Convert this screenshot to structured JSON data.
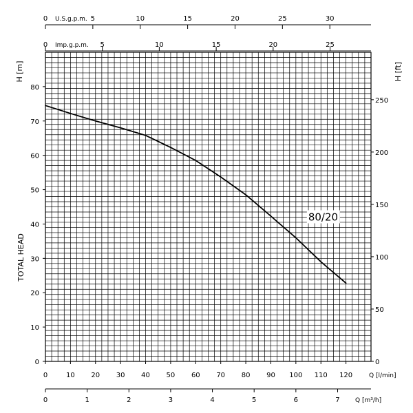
{
  "chart_data": {
    "type": "line",
    "title": "",
    "series": [
      {
        "name": "80/20",
        "x": [
          0,
          10,
          20,
          30,
          40,
          50,
          60,
          70,
          80,
          90,
          100,
          110,
          120
        ],
        "y": [
          74.5,
          72.2,
          70.0,
          68.0,
          65.8,
          62.3,
          58.5,
          53.7,
          48.5,
          42.3,
          36.0,
          29.0,
          22.8
        ]
      }
    ],
    "xlabel": "Q [l/min]",
    "ylabel": "H [m]",
    "left_axis_title": "TOTAL HEAD",
    "xlim": [
      0,
      130
    ],
    "ylim": [
      0,
      90
    ],
    "x_ticks": [
      0,
      10,
      20,
      30,
      40,
      50,
      60,
      70,
      80,
      90,
      100,
      110,
      120
    ],
    "y_ticks": [
      0,
      10,
      20,
      30,
      40,
      50,
      60,
      70,
      80
    ],
    "right_axis": {
      "label": "H [ft]",
      "ticks": [
        0,
        50,
        100,
        150,
        200,
        250
      ]
    },
    "bottom_axis_2": {
      "label": "Q [m³/h]",
      "ticks": [
        0,
        1,
        2,
        3,
        4,
        5,
        6,
        7
      ]
    },
    "top_axis_1": {
      "label": "U.S.g.p.m.",
      "ticks": [
        0,
        5,
        10,
        15,
        20,
        25,
        30
      ]
    },
    "top_axis_2": {
      "label": "Imp.g.p.m.",
      "ticks": [
        0,
        5,
        10,
        15,
        20,
        25
      ]
    },
    "grid": true,
    "colors": {
      "line": "#000000",
      "grid": "#000000",
      "background": "#ffffff"
    }
  }
}
